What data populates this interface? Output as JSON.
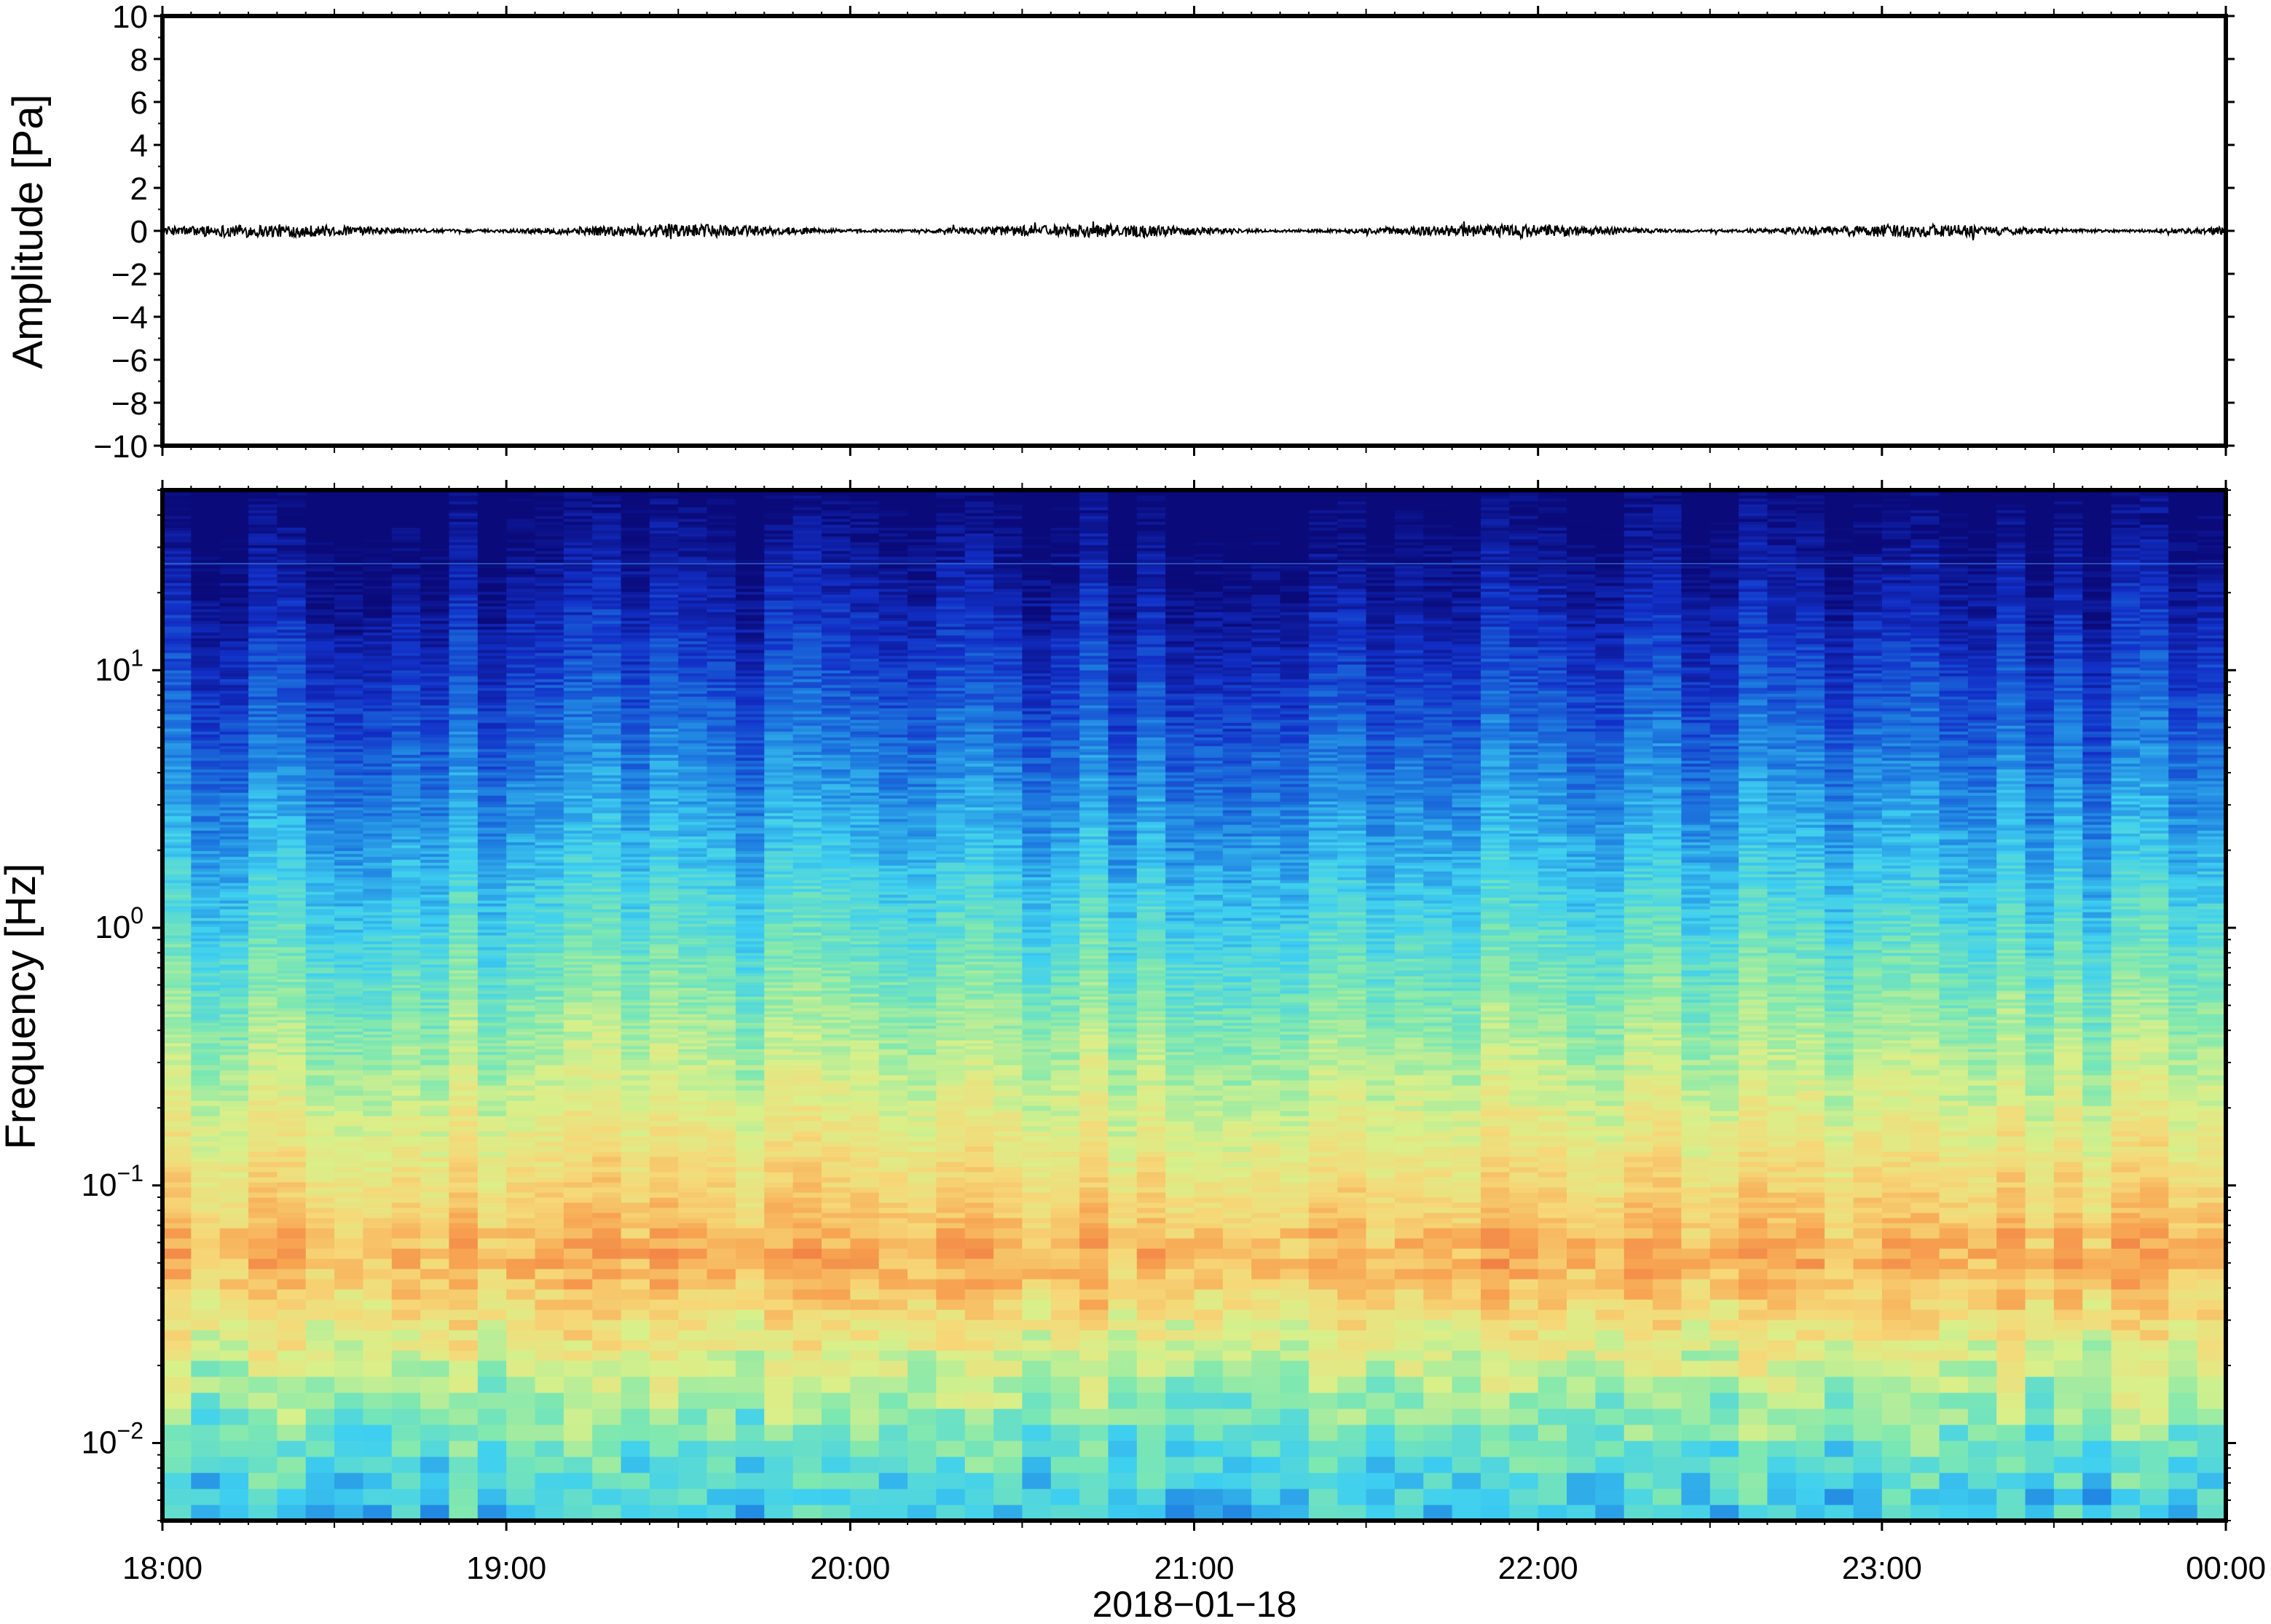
{
  "chart_data": [
    {
      "type": "line",
      "ylabel": "Amplitude [Pa]",
      "ylim": [
        -10,
        10
      ],
      "yticks": [
        10,
        8,
        6,
        4,
        2,
        0,
        -2,
        -4,
        -6,
        -8,
        -10
      ],
      "ytick_labels": [
        "10",
        "8",
        "6",
        "4",
        "2",
        "0",
        "−2",
        "−4",
        "−6",
        "−8",
        "−10"
      ],
      "xlim": [
        "18:00",
        "00:00"
      ],
      "series": [
        {
          "values_description_free": true,
          "approx_baseline": 0,
          "approx_peak_abs": 0.5
        }
      ],
      "grid": false,
      "line_color": "#000000"
    },
    {
      "type": "heatmap",
      "ylabel": "Frequency [Hz]",
      "yscale": "log",
      "ylim": [
        0.005,
        50
      ],
      "yticks": [
        0.01,
        0.1,
        1,
        10
      ],
      "ytick_labels": [
        {
          "base": "10",
          "exp": "−2"
        },
        {
          "base": "10",
          "exp": "−1"
        },
        {
          "base": "10",
          "exp": "0"
        },
        {
          "base": "10",
          "exp": "1"
        }
      ],
      "xlabel": "2018−01−18",
      "xticks": [
        "18:00",
        "19:00",
        "20:00",
        "21:00",
        "22:00",
        "23:00",
        "00:00"
      ],
      "colormap": [
        "#0a0a7a",
        "#1230c8",
        "#1e7ee0",
        "#3ecff0",
        "#7fe8b0",
        "#d8f08a",
        "#f6d878",
        "#f7a552",
        "#f07a42"
      ],
      "grid": false
    }
  ]
}
